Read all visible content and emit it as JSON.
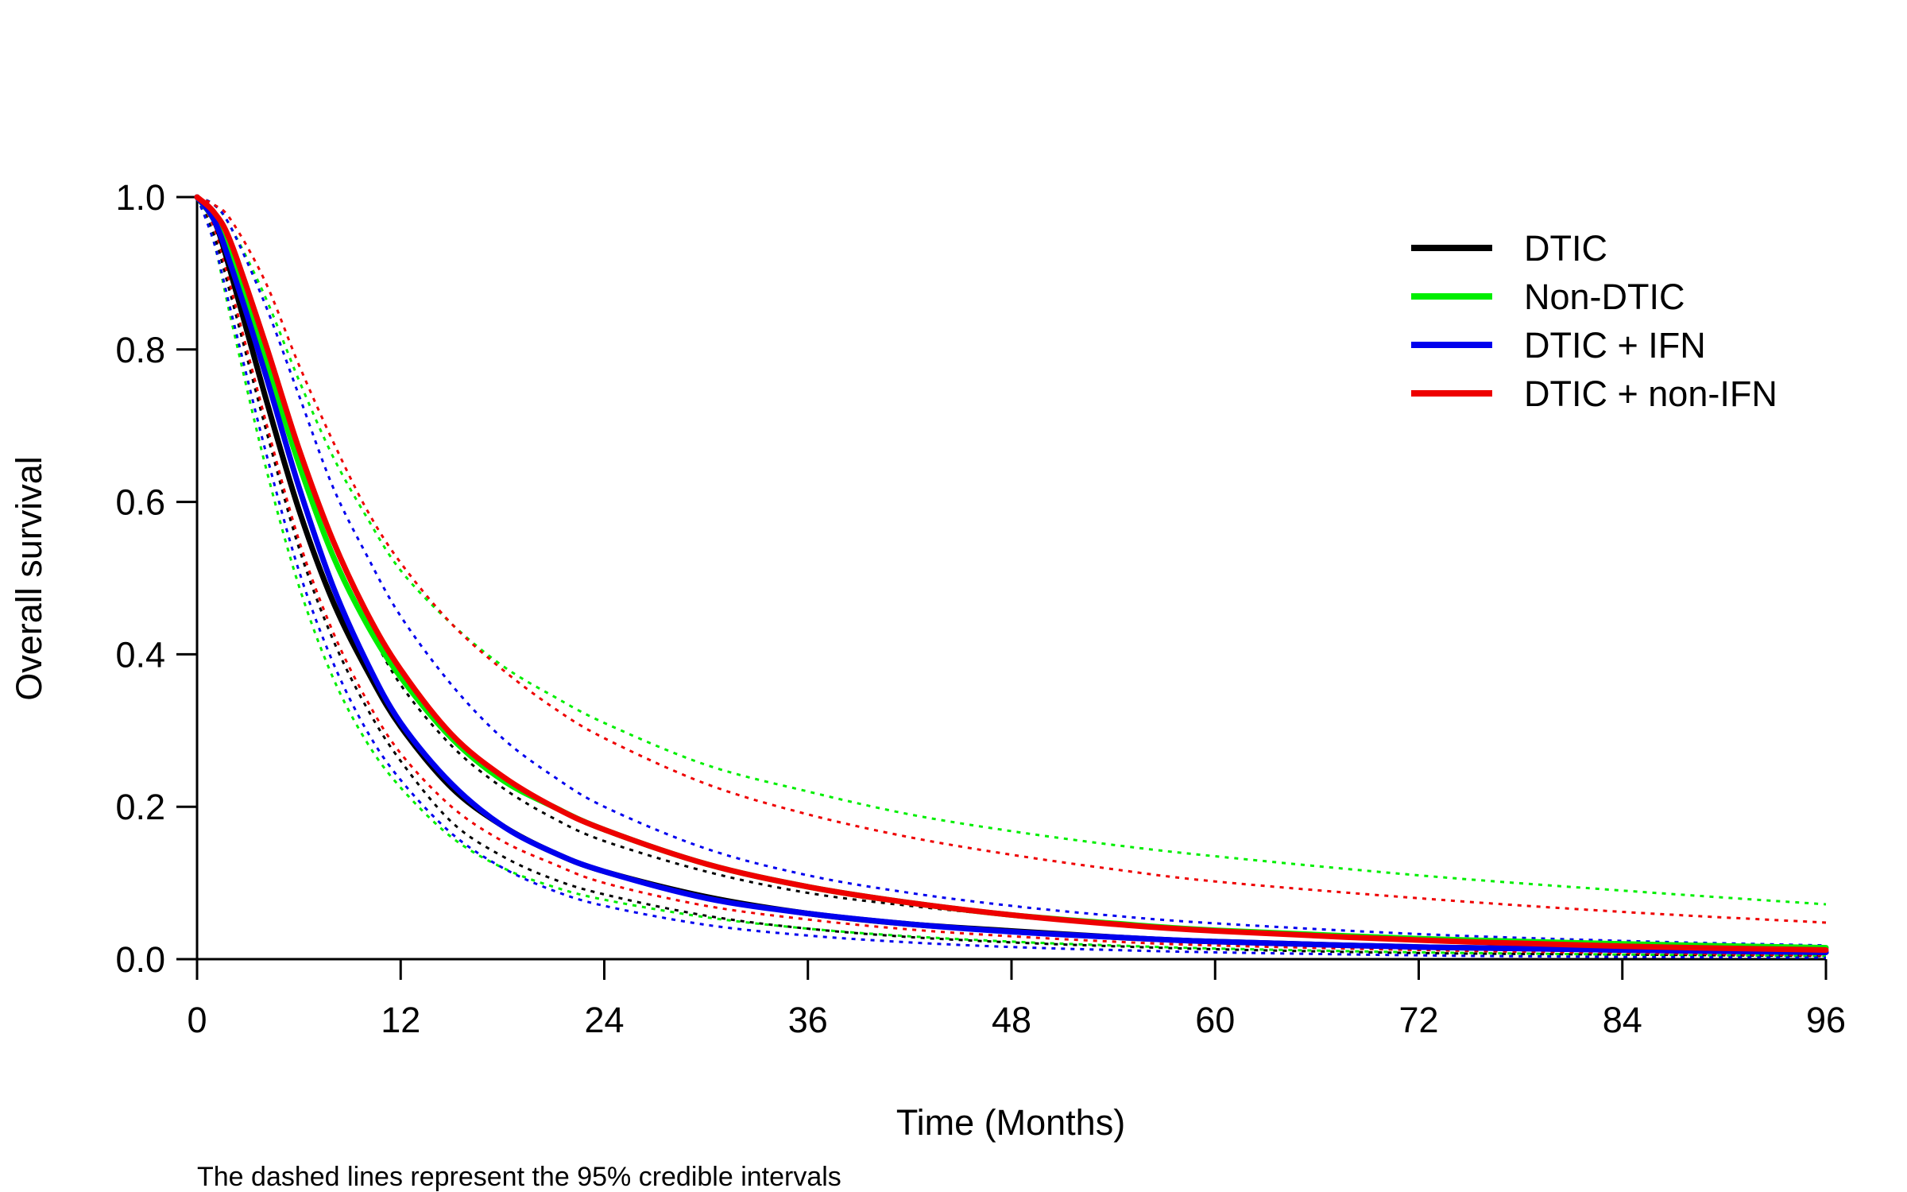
{
  "chart_data": {
    "type": "line",
    "title": "",
    "xlabel": "Time (Months)",
    "ylabel": "Overall survival",
    "xlim": [
      0,
      96
    ],
    "ylim": [
      0,
      1
    ],
    "x_ticks": [
      0,
      12,
      24,
      36,
      48,
      60,
      72,
      84,
      96
    ],
    "x_tick_labels": [
      "0",
      "12",
      "24",
      "36",
      "48",
      "60",
      "72",
      "84",
      "96"
    ],
    "y_ticks": [
      0,
      0.2,
      0.4,
      0.6,
      0.8,
      1.0
    ],
    "y_tick_labels": [
      "0.0",
      "0.2",
      "0.4",
      "0.6",
      "0.8",
      "1.0"
    ],
    "grid": false,
    "legend_position": "top-right",
    "footnote": "The dashed lines represent the 95% credible intervals",
    "x": [
      0,
      1,
      2,
      4,
      6,
      8,
      10,
      12,
      15,
      18,
      21,
      24,
      30,
      36,
      42,
      48,
      54,
      60,
      72,
      84,
      96
    ],
    "series": [
      {
        "name": "DTIC",
        "color": "#000000",
        "values": [
          1.0,
          0.97,
          0.9,
          0.74,
          0.59,
          0.47,
          0.38,
          0.305,
          0.225,
          0.175,
          0.14,
          0.115,
          0.082,
          0.06,
          0.046,
          0.037,
          0.029,
          0.023,
          0.016,
          0.012,
          0.009
        ],
        "ci_lower": [
          1.0,
          0.95,
          0.87,
          0.7,
          0.54,
          0.42,
          0.33,
          0.26,
          0.18,
          0.135,
          0.105,
          0.085,
          0.057,
          0.04,
          0.029,
          0.022,
          0.017,
          0.013,
          0.008,
          0.006,
          0.004
        ],
        "ci_upper": [
          1.0,
          0.98,
          0.93,
          0.79,
          0.65,
          0.53,
          0.44,
          0.36,
          0.28,
          0.225,
          0.185,
          0.155,
          0.115,
          0.087,
          0.07,
          0.057,
          0.047,
          0.039,
          0.028,
          0.021,
          0.016
        ]
      },
      {
        "name": "Non-DTIC",
        "color": "#00ee00",
        "values": [
          1.0,
          0.97,
          0.92,
          0.79,
          0.65,
          0.53,
          0.44,
          0.37,
          0.29,
          0.235,
          0.2,
          0.17,
          0.125,
          0.095,
          0.074,
          0.058,
          0.047,
          0.038,
          0.027,
          0.02,
          0.015
        ],
        "ci_lower": [
          1.0,
          0.94,
          0.84,
          0.65,
          0.49,
          0.37,
          0.285,
          0.225,
          0.16,
          0.12,
          0.095,
          0.078,
          0.055,
          0.04,
          0.03,
          0.023,
          0.018,
          0.014,
          0.009,
          0.006,
          0.004
        ],
        "ci_upper": [
          1.0,
          0.99,
          0.96,
          0.87,
          0.76,
          0.66,
          0.58,
          0.51,
          0.44,
          0.385,
          0.345,
          0.31,
          0.255,
          0.22,
          0.19,
          0.168,
          0.15,
          0.135,
          0.11,
          0.09,
          0.072
        ]
      },
      {
        "name": "DTIC + IFN",
        "color": "#0000ee",
        "values": [
          1.0,
          0.97,
          0.91,
          0.77,
          0.62,
          0.49,
          0.39,
          0.31,
          0.23,
          0.175,
          0.14,
          0.115,
          0.08,
          0.06,
          0.046,
          0.036,
          0.029,
          0.023,
          0.016,
          0.012,
          0.009
        ],
        "ci_lower": [
          1.0,
          0.94,
          0.85,
          0.67,
          0.51,
          0.39,
          0.3,
          0.235,
          0.165,
          0.12,
          0.09,
          0.07,
          0.045,
          0.031,
          0.022,
          0.016,
          0.012,
          0.009,
          0.005,
          0.003,
          0.002
        ],
        "ci_upper": [
          1.0,
          0.99,
          0.96,
          0.86,
          0.74,
          0.62,
          0.53,
          0.45,
          0.36,
          0.29,
          0.24,
          0.2,
          0.145,
          0.11,
          0.087,
          0.07,
          0.057,
          0.047,
          0.033,
          0.024,
          0.018
        ]
      },
      {
        "name": "DTIC + non-IFN",
        "color": "#ee0000",
        "values": [
          1.0,
          0.98,
          0.94,
          0.81,
          0.67,
          0.55,
          0.455,
          0.38,
          0.295,
          0.24,
          0.2,
          0.17,
          0.125,
          0.095,
          0.074,
          0.058,
          0.046,
          0.037,
          0.025,
          0.017,
          0.012
        ],
        "ci_lower": [
          1.0,
          0.96,
          0.88,
          0.71,
          0.55,
          0.43,
          0.34,
          0.27,
          0.2,
          0.155,
          0.125,
          0.1,
          0.07,
          0.052,
          0.039,
          0.03,
          0.023,
          0.018,
          0.012,
          0.008,
          0.005
        ],
        "ci_upper": [
          1.0,
          0.99,
          0.97,
          0.89,
          0.78,
          0.68,
          0.59,
          0.52,
          0.44,
          0.38,
          0.33,
          0.29,
          0.23,
          0.19,
          0.16,
          0.137,
          0.118,
          0.102,
          0.08,
          0.062,
          0.048
        ]
      }
    ]
  }
}
